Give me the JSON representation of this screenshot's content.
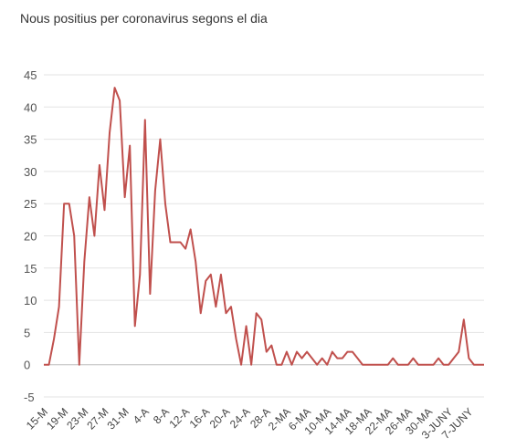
{
  "chart_data": {
    "type": "line",
    "title": "Nous positius per coronavirus segons el dia",
    "xlabel": "",
    "ylabel": "",
    "ylim": [
      -5,
      45
    ],
    "yticks": [
      45,
      40,
      35,
      30,
      25,
      20,
      15,
      10,
      5,
      0,
      -5
    ],
    "xticks": [
      "15-M",
      "19-M",
      "23-M",
      "27-M",
      "31-M",
      "4-A",
      "8-A",
      "12-A",
      "16-A",
      "20-A",
      "24-A",
      "28-A",
      "2-MA",
      "6-MA",
      "10-MA",
      "14-MA",
      "18-MA",
      "22-MA",
      "26-MA",
      "30-MA",
      "3-JUNY",
      "7-JUNY"
    ],
    "grid": true,
    "legend": "none",
    "line_color": "#c0504d",
    "series": [
      {
        "values": [
          0,
          0,
          4,
          9,
          25,
          25,
          20,
          0,
          16,
          26,
          20,
          31,
          24,
          36,
          43,
          41,
          26,
          34,
          6,
          14,
          38,
          11,
          27,
          35,
          25,
          19,
          19,
          19,
          18,
          21,
          16,
          8,
          13,
          14,
          9,
          14,
          8,
          9,
          4,
          0,
          6,
          0,
          8,
          7,
          2,
          3,
          0,
          0,
          2,
          0,
          2,
          1,
          2,
          1,
          0,
          1,
          0,
          2,
          1,
          1,
          2,
          2,
          1,
          0,
          0,
          0,
          0,
          0,
          0,
          1,
          0,
          0,
          0,
          1,
          0,
          0,
          0,
          0,
          1,
          0,
          0,
          1,
          2,
          7,
          1,
          0,
          0,
          0
        ]
      }
    ]
  }
}
